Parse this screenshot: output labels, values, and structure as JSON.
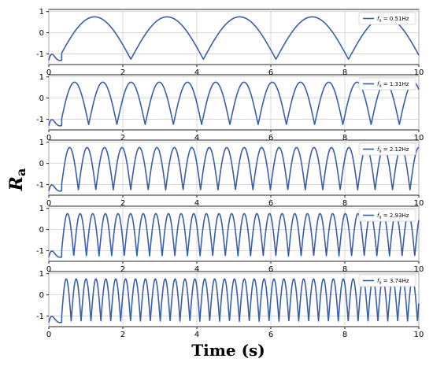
{
  "figure": {
    "xlabel": "Time (s)",
    "ylabel_main": "R",
    "ylabel_sub": "a"
  },
  "chart_data": [
    {
      "type": "line",
      "xlim": [
        0,
        10
      ],
      "ylim": [
        -1.5,
        1.1
      ],
      "x_ticks": [
        0,
        2,
        4,
        6,
        8,
        10
      ],
      "y_ticks": [
        -1,
        0,
        1
      ],
      "grid": true,
      "legend_position": "top-right",
      "series": [
        {
          "name": "= 0.51Hz",
          "legend_sym": "f",
          "legend_sub": "a",
          "frequency_hz": 0.51,
          "amplitude": [
            -1.25,
            0.75
          ],
          "color": "#3b5ea8"
        }
      ]
    },
    {
      "type": "line",
      "xlim": [
        0,
        10
      ],
      "ylim": [
        -1.5,
        1.1
      ],
      "x_ticks": [
        0,
        2,
        4,
        6,
        8,
        10
      ],
      "y_ticks": [
        -1,
        0,
        1
      ],
      "grid": true,
      "legend_position": "top-right",
      "series": [
        {
          "name": "= 1.31Hz",
          "legend_sym": "f",
          "legend_sub": "a",
          "frequency_hz": 1.31,
          "amplitude": [
            -1.25,
            0.75
          ],
          "color": "#3b5ea8"
        }
      ]
    },
    {
      "type": "line",
      "xlim": [
        0,
        10
      ],
      "ylim": [
        -1.5,
        1.1
      ],
      "x_ticks": [
        0,
        2,
        4,
        6,
        8,
        10
      ],
      "y_ticks": [
        -1,
        0,
        1
      ],
      "grid": true,
      "legend_position": "top-right",
      "series": [
        {
          "name": "= 2.12Hz",
          "legend_sym": "f",
          "legend_sub": "a",
          "frequency_hz": 2.12,
          "amplitude": [
            -1.25,
            0.75
          ],
          "color": "#3b5ea8"
        }
      ]
    },
    {
      "type": "line",
      "xlim": [
        0,
        10
      ],
      "ylim": [
        -1.5,
        1.1
      ],
      "x_ticks": [
        0,
        2,
        4,
        6,
        8,
        10
      ],
      "y_ticks": [
        -1,
        0,
        1
      ],
      "grid": true,
      "legend_position": "top-right",
      "series": [
        {
          "name": "= 2.93Hz",
          "legend_sym": "f",
          "legend_sub": "a",
          "frequency_hz": 2.93,
          "amplitude": [
            -1.25,
            0.75
          ],
          "color": "#3b5ea8"
        }
      ]
    },
    {
      "type": "line",
      "xlim": [
        0,
        10
      ],
      "ylim": [
        -1.5,
        1.1
      ],
      "x_ticks": [
        0,
        2,
        4,
        6,
        8,
        10
      ],
      "y_ticks": [
        -1,
        0,
        1
      ],
      "grid": true,
      "legend_position": "top-right",
      "series": [
        {
          "name": "= 3.74Hz",
          "legend_sym": "f",
          "legend_sub": "a",
          "frequency_hz": 3.74,
          "amplitude": [
            -1.25,
            0.75
          ],
          "color": "#3b5ea8"
        }
      ]
    }
  ]
}
